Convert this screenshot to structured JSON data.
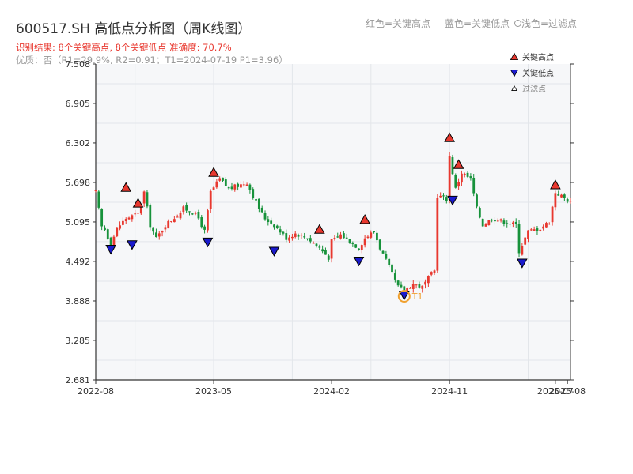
{
  "title": "600517.SH 高低点分析图（周K线图）",
  "subtitle": "识别结果: 8个关键高点, 8个关键低点   准确度: 70.7%",
  "info": "优质：否（R1=29.9%, R2=0.91；T1=2024-07-19 P1=3.96）",
  "top_legend": [
    "红色=关键高点",
    "蓝色=关键低点",
    "浅色=过滤点"
  ],
  "colors": {
    "up": "#e8382f",
    "down": "#17923b",
    "high_marker": "#e8382f",
    "low_marker": "#1a1acd",
    "t1_ring": "#f0a02e",
    "axis": "#333333",
    "grid": "#e3e6ea",
    "plot_bg": "#f6f7f9"
  },
  "chart_data": {
    "type": "candlestick",
    "title": "600517.SH 高低点分析图（周K线图）",
    "xlabel": "",
    "ylabel": "",
    "x_range": [
      "2022-08-05",
      "2025-08-08"
    ],
    "ylim": [
      2.681,
      7.508
    ],
    "yticks": [
      "2.681",
      "3.285",
      "3.888",
      "4.492",
      "5.095",
      "5.698",
      "6.302",
      "6.905",
      "7.508"
    ],
    "xticks": [
      {
        "date": "2022-08-05",
        "label": "2022-08"
      },
      {
        "date": "2023-05-05",
        "label": "2023-05"
      },
      {
        "date": "2024-02-02",
        "label": "2024-02"
      },
      {
        "date": "2024-11-01",
        "label": "2024-11"
      },
      {
        "date": "2025-07-04",
        "label": "2025-07"
      },
      {
        "date": "2025-08-01",
        "label": "2025-08"
      }
    ],
    "anchors": [
      [
        "2022-08-05",
        5.55
      ],
      [
        "2022-08-19",
        5.02
      ],
      [
        "2022-08-26",
        4.98
      ],
      [
        "2022-09-09",
        4.75
      ],
      [
        "2022-09-23",
        5.0
      ],
      [
        "2022-10-14",
        5.15
      ],
      [
        "2022-11-11",
        5.22
      ],
      [
        "2022-11-25",
        5.55
      ],
      [
        "2022-12-09",
        5.05
      ],
      [
        "2022-12-23",
        4.84
      ],
      [
        "2023-01-13",
        5.05
      ],
      [
        "2023-02-10",
        5.2
      ],
      [
        "2023-02-24",
        5.3
      ],
      [
        "2023-03-17",
        5.25
      ],
      [
        "2023-03-31",
        5.15
      ],
      [
        "2023-04-14",
        4.95
      ],
      [
        "2023-04-28",
        5.55
      ],
      [
        "2023-05-19",
        5.75
      ],
      [
        "2023-06-09",
        5.6
      ],
      [
        "2023-06-30",
        5.65
      ],
      [
        "2023-07-21",
        5.7
      ],
      [
        "2023-08-04",
        5.5
      ],
      [
        "2023-08-18",
        5.3
      ],
      [
        "2023-09-01",
        5.15
      ],
      [
        "2023-09-22",
        5.05
      ],
      [
        "2023-10-20",
        4.85
      ],
      [
        "2023-11-10",
        4.92
      ],
      [
        "2023-12-08",
        4.85
      ],
      [
        "2024-01-05",
        4.7
      ],
      [
        "2024-01-26",
        4.55
      ],
      [
        "2024-02-02",
        4.8
      ],
      [
        "2024-02-23",
        4.9
      ],
      [
        "2024-03-15",
        4.8
      ],
      [
        "2024-04-05",
        4.7
      ],
      [
        "2024-04-19",
        4.85
      ],
      [
        "2024-05-10",
        4.95
      ],
      [
        "2024-05-24",
        4.7
      ],
      [
        "2024-06-14",
        4.4
      ],
      [
        "2024-07-05",
        4.1
      ],
      [
        "2024-07-19",
        4.05
      ],
      [
        "2024-08-09",
        4.15
      ],
      [
        "2024-08-30",
        4.1
      ],
      [
        "2024-09-20",
        4.3
      ],
      [
        "2024-09-27",
        4.35
      ],
      [
        "2024-10-04",
        5.5
      ],
      [
        "2024-10-25",
        5.45
      ],
      [
        "2024-11-01",
        6.1
      ],
      [
        "2024-11-15",
        5.6
      ],
      [
        "2024-11-29",
        5.85
      ],
      [
        "2024-12-20",
        5.75
      ],
      [
        "2025-01-03",
        5.3
      ],
      [
        "2025-01-17",
        5.05
      ],
      [
        "2025-02-07",
        5.15
      ],
      [
        "2025-03-07",
        5.1
      ],
      [
        "2025-04-04",
        5.05
      ],
      [
        "2025-04-11",
        4.65
      ],
      [
        "2025-05-02",
        4.95
      ],
      [
        "2025-05-30",
        5.0
      ],
      [
        "2025-06-20",
        5.1
      ],
      [
        "2025-07-04",
        5.55
      ],
      [
        "2025-08-08",
        5.4
      ]
    ],
    "key_highs": [
      {
        "date": "2022-10-14",
        "price": 5.62
      },
      {
        "date": "2022-11-11",
        "price": 5.38
      },
      {
        "date": "2023-05-05",
        "price": 5.85
      },
      {
        "date": "2024-01-05",
        "price": 4.98
      },
      {
        "date": "2024-04-19",
        "price": 5.13
      },
      {
        "date": "2024-11-01",
        "price": 6.38
      },
      {
        "date": "2024-11-22",
        "price": 5.97
      },
      {
        "date": "2025-07-04",
        "price": 5.66
      }
    ],
    "key_lows": [
      {
        "date": "2022-09-09",
        "price": 4.68
      },
      {
        "date": "2022-10-28",
        "price": 4.75
      },
      {
        "date": "2023-04-21",
        "price": 4.79
      },
      {
        "date": "2023-09-22",
        "price": 4.65
      },
      {
        "date": "2024-04-05",
        "price": 4.5
      },
      {
        "date": "2024-07-19",
        "price": 3.98
      },
      {
        "date": "2024-11-08",
        "price": 5.43
      },
      {
        "date": "2025-04-18",
        "price": 4.47
      }
    ],
    "t1_point": {
      "date": "2024-07-19",
      "price": 3.96,
      "label": "T1"
    },
    "legend": [
      {
        "label": "关键高点",
        "marker": "triangle-up",
        "color": "#e8382f"
      },
      {
        "label": "关键低点",
        "marker": "triangle-down",
        "color": "#1a1acd"
      },
      {
        "label": "过滤点",
        "marker": "triangle-up-small",
        "color": "#ffffff"
      }
    ],
    "legend_position": "top-right"
  }
}
